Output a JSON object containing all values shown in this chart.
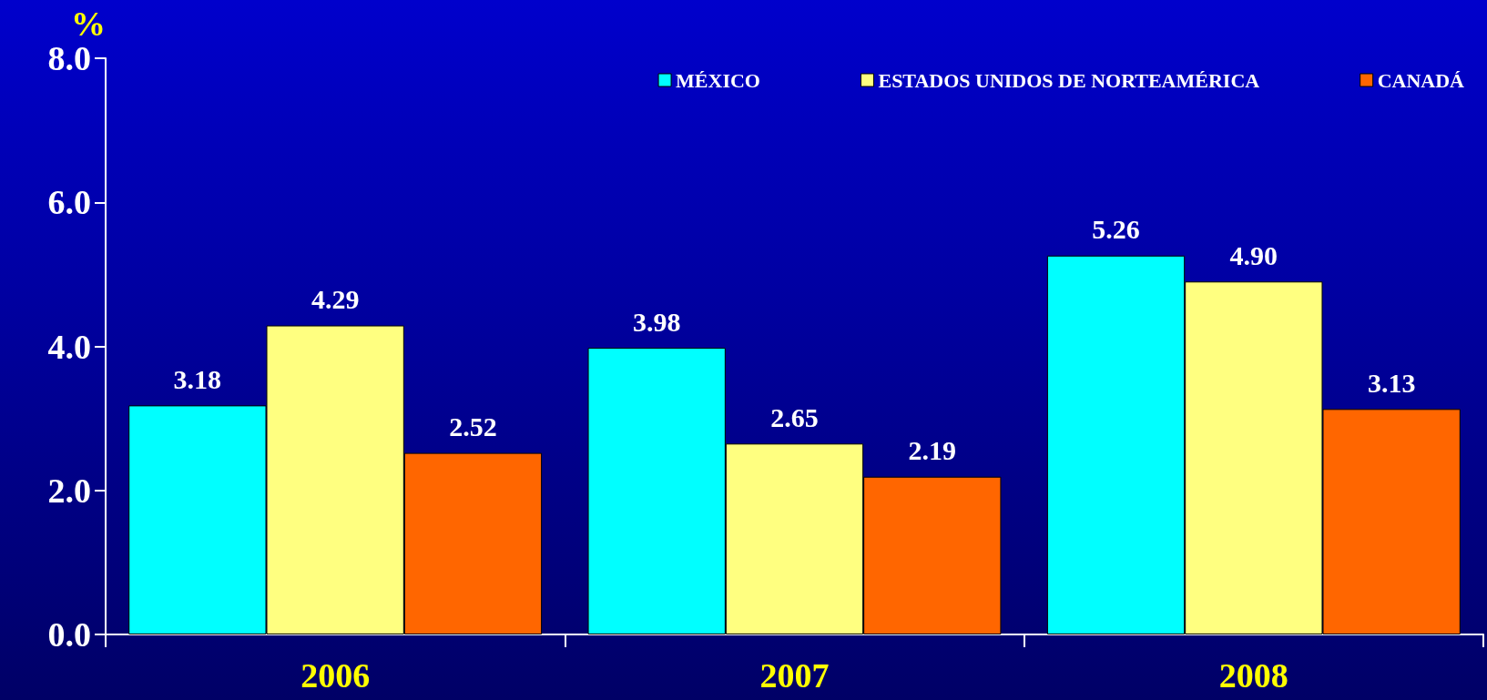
{
  "chart_data": {
    "type": "bar",
    "ylabel": "%",
    "categories": [
      "2006",
      "2007",
      "2008"
    ],
    "series": [
      {
        "name": "MÉXICO",
        "color": "#00ffff",
        "values": [
          3.18,
          3.98,
          5.26
        ]
      },
      {
        "name": "ESTADOS UNIDOS DE NORTEAMÉRICA",
        "color": "#ffff80",
        "values": [
          4.29,
          2.65,
          4.9
        ]
      },
      {
        "name": "CANADÁ",
        "color": "#ff6600",
        "values": [
          2.52,
          2.19,
          3.13
        ]
      }
    ],
    "ylim": [
      0,
      8
    ],
    "yticks": [
      {
        "value": 0,
        "label": "0.0"
      },
      {
        "value": 2,
        "label": "2.0"
      },
      {
        "value": 4,
        "label": "4.0"
      },
      {
        "value": 6,
        "label": "6.0"
      },
      {
        "value": 8,
        "label": "8.0"
      }
    ],
    "value_labels": [
      [
        "3.18",
        "3.98",
        "5.26"
      ],
      [
        "4.29",
        "2.65",
        "4.90"
      ],
      [
        "2.52",
        "2.19",
        "3.13"
      ]
    ],
    "grid": false,
    "legend": "top right"
  }
}
